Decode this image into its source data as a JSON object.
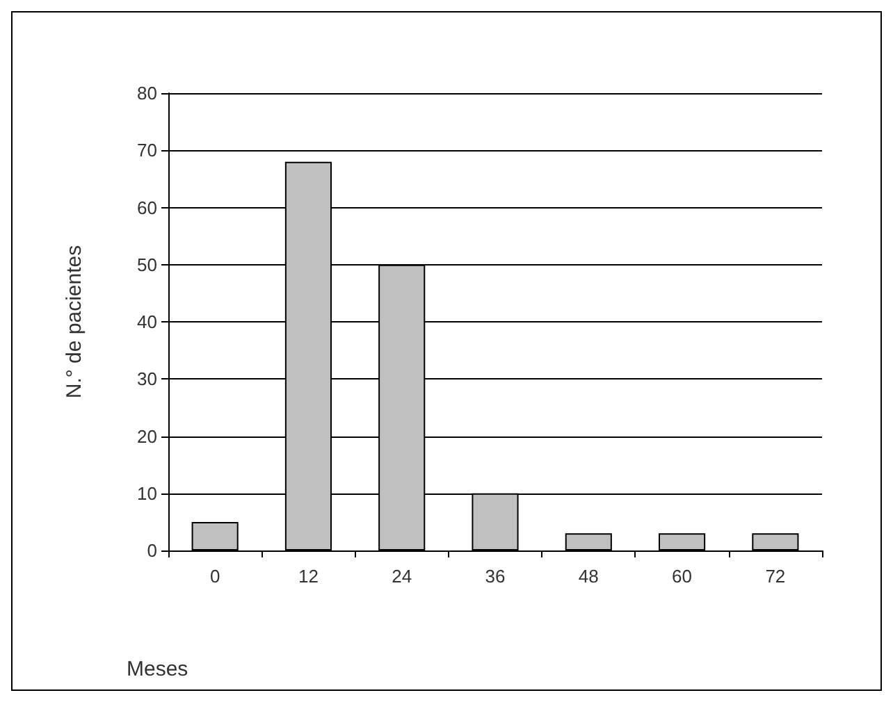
{
  "chart_data": {
    "type": "bar",
    "xlabel": "Meses",
    "ylabel": "N.° de pacientes",
    "categories": [
      "0",
      "12",
      "24",
      "36",
      "48",
      "60",
      "72"
    ],
    "values": [
      5,
      68,
      50,
      10,
      3,
      3,
      3
    ],
    "color": "#c0c0c0",
    "ylim": [
      0,
      80
    ],
    "yticks": [
      0,
      10,
      20,
      30,
      40,
      50,
      60,
      70,
      80
    ],
    "grid": "y"
  }
}
